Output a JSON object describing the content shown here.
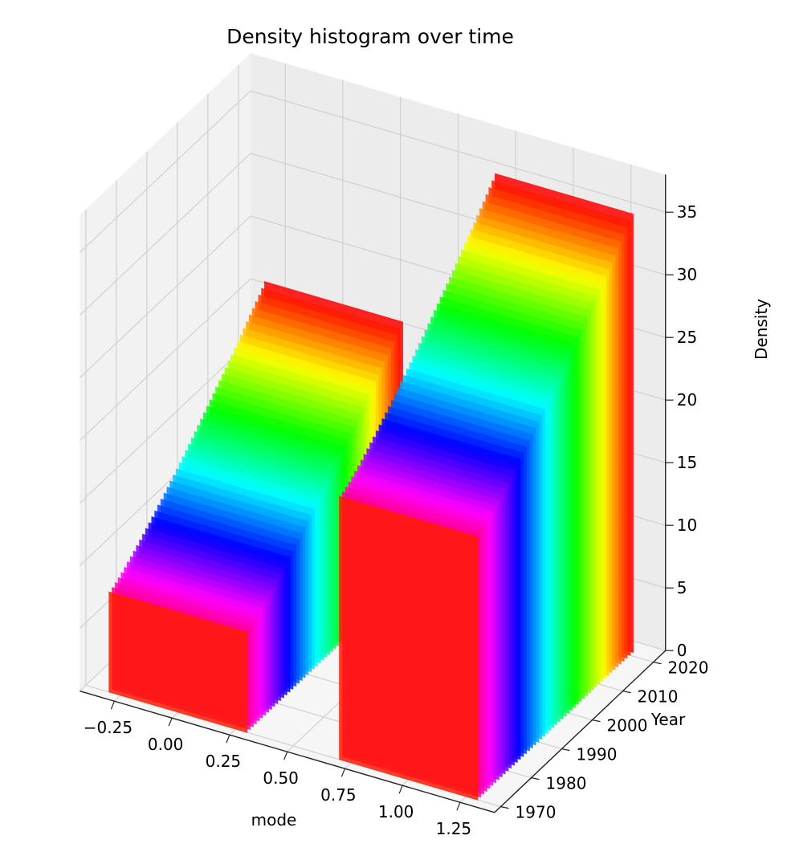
{
  "chart_data": {
    "type": "bar",
    "projection": "3d",
    "title": "Density histogram over time",
    "xlabel": "mode",
    "ylabel": "Year",
    "zlabel": "Density",
    "xticks": [
      "−0.25",
      "0.00",
      "0.25",
      "0.50",
      "0.75",
      "1.00",
      "1.25"
    ],
    "yticks": [
      "1970",
      "1980",
      "1990",
      "2000",
      "2010",
      "2020"
    ],
    "zticks": [
      "0",
      "5",
      "10",
      "15",
      "20",
      "25",
      "30",
      "35"
    ],
    "xlim": [
      -0.4,
      1.4
    ],
    "ylim": [
      1968,
      2024
    ],
    "zlim": [
      0,
      38
    ],
    "grid": true,
    "colormap": "hsv",
    "bins": [
      0,
      1
    ],
    "bin_width": 0.6,
    "series": [
      {
        "x": 0,
        "y_start": 1970,
        "y_end": 2021,
        "z_start": 8,
        "z_end": 21
      },
      {
        "x": 1,
        "y_start": 1970,
        "y_end": 2021,
        "z_start": 21,
        "z_end": 35
      }
    ]
  }
}
